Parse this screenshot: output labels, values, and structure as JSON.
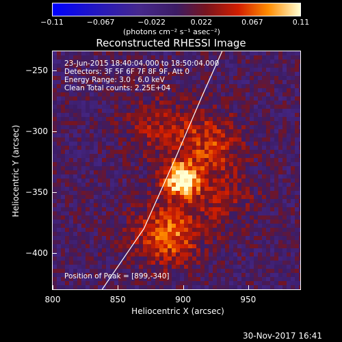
{
  "chart_data": {
    "type": "heatmap",
    "title": "Reconstructed RHESSI Image",
    "xlabel": "Heliocentric X (arcsec)",
    "ylabel": "Heliocentric Y (arcsec)",
    "xlim": [
      800,
      990
    ],
    "ylim": [
      -430,
      -234
    ],
    "x_ticks": [
      "800",
      "850",
      "900",
      "950"
    ],
    "x_tick_values": [
      800,
      850,
      900,
      950
    ],
    "y_ticks": [
      "−250",
      "−300",
      "−350",
      "−400"
    ],
    "y_tick_values": [
      -250,
      -300,
      -350,
      -400
    ],
    "colorbar": {
      "ticks": [
        "−0.11",
        "−0.067",
        "−0.022",
        "0.022",
        "0.067",
        "0.11"
      ],
      "tick_values": [
        -0.11,
        -0.067,
        -0.022,
        0.022,
        0.067,
        0.11
      ],
      "range": [
        -0.11,
        0.11
      ],
      "units": "(photons cm⁻² s⁻¹ asec⁻²)"
    },
    "annotations": [
      "23-Jun-2015 18:40:04.000 to 18:50:04.000",
      "Detectors: 3F 5F 6F 7F 8F 9F, Att 0",
      "Energy Range: 3.0 - 6.0 keV",
      "Clean     Total counts: 2.25E+04"
    ],
    "peak_label": "Position of Peak = [899,-340]",
    "peak": {
      "x": 899,
      "y": -340,
      "value": 0.11
    },
    "sources": [
      {
        "x": 899,
        "y": -340,
        "amplitude": 0.11
      },
      {
        "x": 920,
        "y": -310,
        "amplitude": 0.05
      },
      {
        "x": 888,
        "y": -385,
        "amplitude": 0.07
      },
      {
        "x": 880,
        "y": -295,
        "amplitude": 0.035
      },
      {
        "x": 930,
        "y": -355,
        "amplitude": 0.03
      }
    ],
    "limb_curve": [
      [
        838,
        -430
      ],
      [
        870,
        -380
      ],
      [
        895,
        -320
      ],
      [
        915,
        -270
      ],
      [
        930,
        -234
      ]
    ]
  },
  "timestamp": "30-Nov-2017 16:41"
}
